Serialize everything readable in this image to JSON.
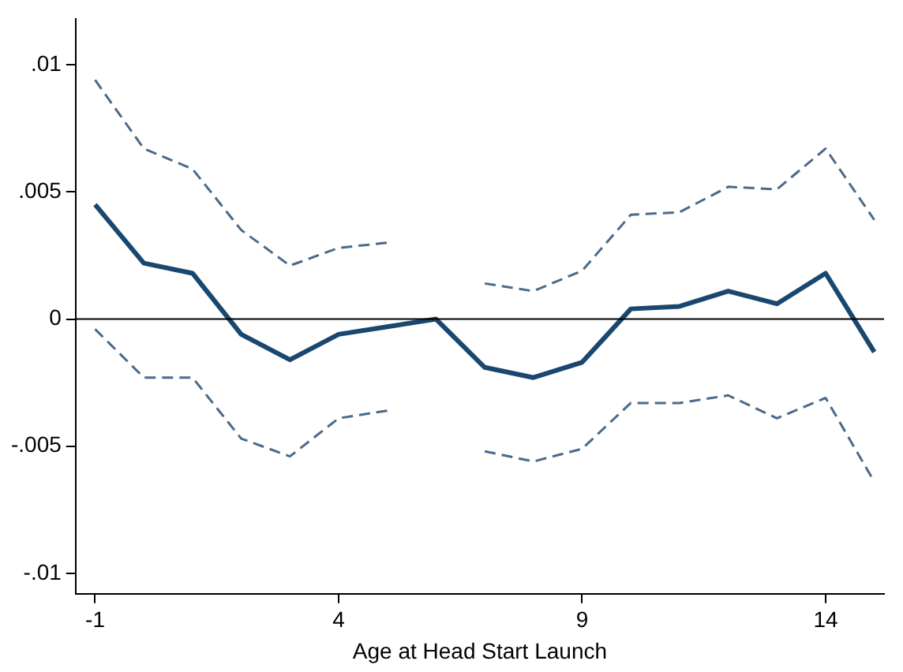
{
  "chart_data": {
    "type": "line",
    "xlabel": "Age at Head Start Launch",
    "x": [
      -1,
      0,
      1,
      2,
      3,
      4,
      5,
      6,
      7,
      8,
      9,
      10,
      11,
      12,
      13,
      14,
      15
    ],
    "series": [
      {
        "color": "#1a476f",
        "line_style": "solid",
        "values": [
          0.0045,
          0.0022,
          0.0018,
          -0.0006,
          -0.0016,
          -0.0006,
          -0.0003,
          0,
          -0.0019,
          -0.0023,
          -0.0017,
          0.0004,
          0.0005,
          0.0011,
          0.0006,
          0.0018,
          -0.0013
        ]
      },
      {
        "color": "#4a6a8c",
        "line_style": "dashed",
        "values": [
          0.0094,
          0.0067,
          0.0059,
          0.0035,
          0.0021,
          0.0028,
          0.003,
          null,
          0.0014,
          0.0011,
          0.0019,
          0.0041,
          0.0042,
          0.0052,
          0.0051,
          0.0067,
          0.0039
        ]
      },
      {
        "color": "#4a6a8c",
        "line_style": "dashed",
        "values": [
          -0.0004,
          -0.0023,
          -0.0023,
          -0.0047,
          -0.0054,
          -0.0039,
          -0.0036,
          null,
          -0.0052,
          -0.0056,
          -0.0051,
          -0.0033,
          -0.0033,
          -0.003,
          -0.0039,
          -0.0031,
          -0.0064
        ]
      }
    ],
    "xlim": [
      -1.4,
      15.2
    ],
    "xticks": [
      -1,
      4,
      9,
      14
    ],
    "ylim": [
      -0.0108,
      0.0118
    ],
    "yticks": [
      {
        "value": -0.01,
        "label": "-.01"
      },
      {
        "value": -0.005,
        "label": "-.005"
      },
      0,
      {
        "value": 0.005,
        "label": ".005"
      },
      {
        "value": 0.01,
        "label": ".01"
      }
    ],
    "ref_lines": [
      {
        "axis": "y",
        "value": 0,
        "color": "#000000"
      }
    ],
    "grid": false,
    "legend": false,
    "marker": "none"
  }
}
